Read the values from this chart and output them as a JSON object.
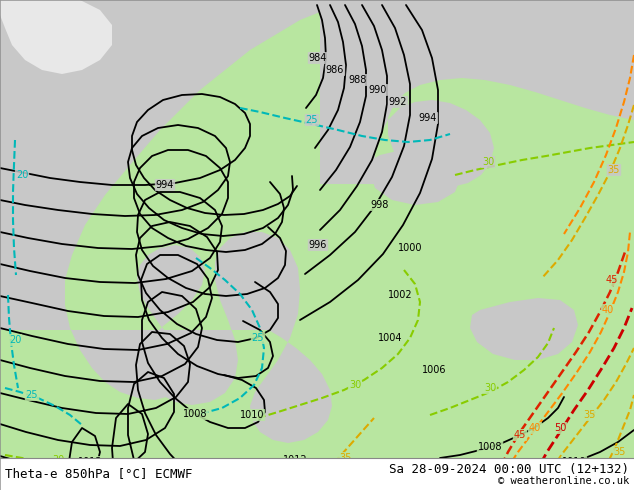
{
  "title_left": "Theta-e 850hPa [°C] ECMWF",
  "title_right": "Sa 28-09-2024 00:00 UTC (12+132)",
  "copyright": "© weatheronline.co.uk",
  "bg_green": "#b8e6a0",
  "bg_gray": "#c8c8c8",
  "bg_white": "#e8e8e8",
  "bottom_bar": "#ffffff",
  "black_lw": 1.3,
  "theta_lw": 1.5,
  "font_title": 9,
  "font_label": 7
}
